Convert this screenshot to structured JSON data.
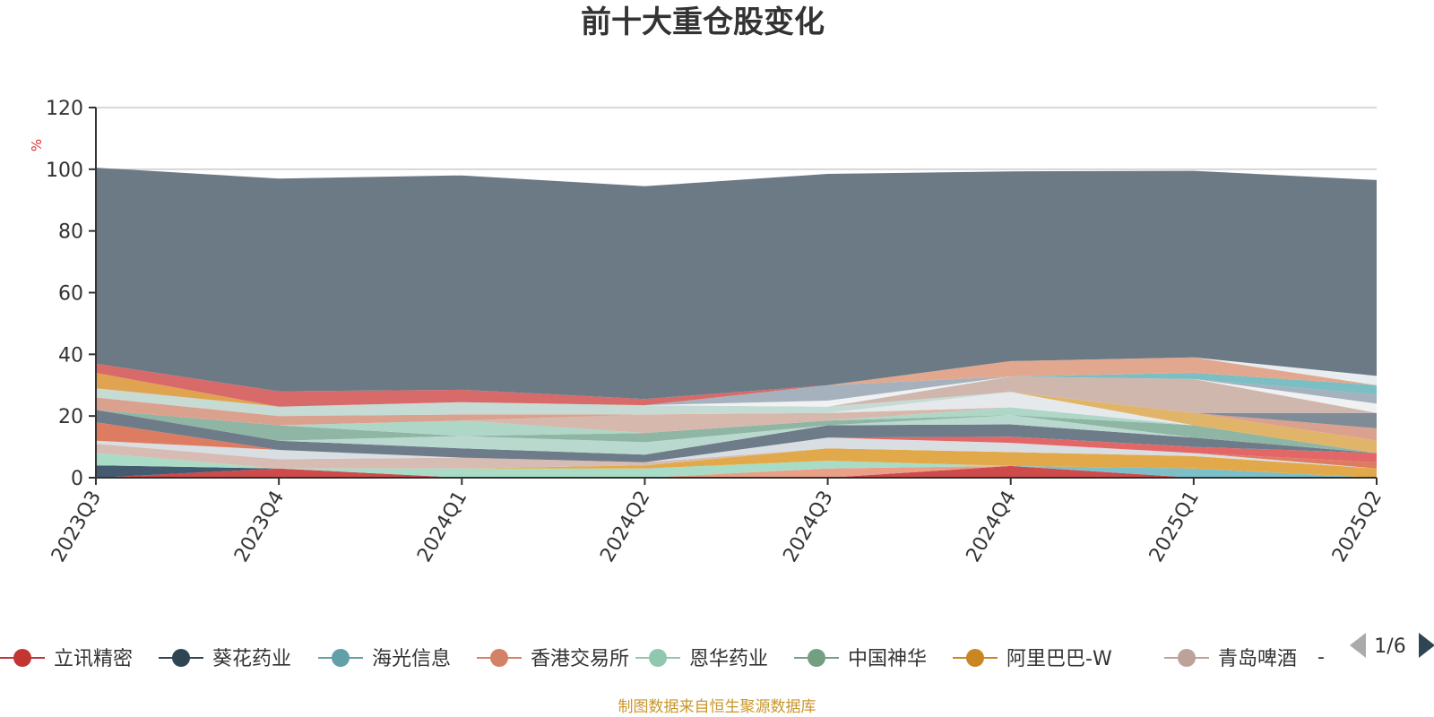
{
  "chart_data": {
    "type": "area",
    "stacked": true,
    "title": "前十大重仓股变化",
    "ylabel": "%",
    "ylim": [
      0,
      120
    ],
    "yticks": [
      0,
      20,
      40,
      60,
      80,
      100,
      120
    ],
    "grid": true,
    "categories": [
      "2023Q3",
      "2023Q4",
      "2024Q1",
      "2024Q2",
      "2024Q3",
      "2024Q4",
      "2025Q1",
      "2025Q2"
    ],
    "series": [
      {
        "name": "立讯精密",
        "color": "#cf4a4a",
        "values": [
          0.0,
          3.0,
          0.0,
          0.0,
          0.0,
          3.8,
          0.0,
          0.0
        ]
      },
      {
        "name": "",
        "color": "#445a6e",
        "values": [
          4.0,
          0.0,
          0.0,
          0.0,
          0.0,
          0.0,
          0.0,
          0.0
        ]
      },
      {
        "name": "",
        "color": "#ea9f86",
        "values": [
          0.0,
          0.0,
          0.0,
          0.0,
          3.0,
          0.0,
          0.0,
          0.0
        ]
      },
      {
        "name": "",
        "color": "#7dbfc8",
        "values": [
          0.0,
          0.0,
          0.0,
          0.0,
          0.0,
          0.0,
          3.0,
          0.0
        ]
      },
      {
        "name": "恩华药业",
        "color": "#a9dcc7",
        "values": [
          4.0,
          0.0,
          3.0,
          3.0,
          2.5,
          0.0,
          0.0,
          0.0
        ]
      },
      {
        "name": "",
        "color": "#9ec7b8",
        "values": [
          0.0,
          0.0,
          0.0,
          0.0,
          0.0,
          0.0,
          0.0,
          0.0
        ]
      },
      {
        "name": "阿里巴巴-W",
        "color": "#e2a94b",
        "values": [
          0.0,
          0.0,
          0.0,
          1.0,
          4.0,
          4.5,
          4.0,
          3.0
        ]
      },
      {
        "name": "青岛啤酒",
        "color": "#d7bcb3",
        "values": [
          3.0,
          3.0,
          3.5,
          1.0,
          0.0,
          0.0,
          0.0,
          0.0
        ]
      },
      {
        "name": "",
        "color": "#d9dee3",
        "values": [
          1.0,
          3.0,
          0.0,
          0.0,
          3.5,
          3.0,
          1.0,
          0.0
        ]
      },
      {
        "name": "香港交易所",
        "color": "#de7c62",
        "values": [
          6.0,
          0.0,
          0.0,
          0.0,
          0.0,
          0.0,
          0.0,
          2.0
        ]
      },
      {
        "name": "",
        "color": "#e46767",
        "values": [
          0.0,
          0.0,
          0.0,
          0.0,
          0.0,
          2.0,
          2.0,
          3.0
        ]
      },
      {
        "name": "",
        "color": "#6e7c8a",
        "values": [
          4.0,
          3.0,
          3.0,
          2.5,
          4.0,
          4.0,
          3.0,
          0.0
        ]
      },
      {
        "name": "",
        "color": "#b9d8ce",
        "values": [
          0.0,
          0.0,
          4.0,
          4.0,
          0.0,
          3.0,
          0.0,
          0.0
        ]
      },
      {
        "name": "",
        "color": "#8fb5a5",
        "values": [
          0.0,
          5.0,
          0.0,
          3.0,
          1.5,
          0.0,
          4.0,
          0.0
        ]
      },
      {
        "name": "",
        "color": "#9aa7b3",
        "values": [
          0.0,
          0.0,
          0.0,
          0.0,
          0.0,
          0.0,
          0.0,
          0.0
        ]
      },
      {
        "name": "",
        "color": "#aed7c8",
        "values": [
          0.0,
          0.0,
          5.0,
          0.0,
          0.0,
          2.5,
          0.0,
          0.0
        ]
      },
      {
        "name": "",
        "color": "#d7b8ad",
        "values": [
          0.0,
          0.0,
          0.0,
          6.0,
          2.5,
          0.0,
          0.0,
          0.0
        ]
      },
      {
        "name": "",
        "color": "#e6e9ec",
        "values": [
          0.0,
          0.0,
          0.0,
          0.0,
          0.0,
          5.0,
          0.0,
          0.0
        ]
      },
      {
        "name": "",
        "color": "#e0b56a",
        "values": [
          0.0,
          0.0,
          0.0,
          0.0,
          0.0,
          0.0,
          4.0,
          4.0
        ]
      },
      {
        "name": "",
        "color": "#dba18f",
        "values": [
          4.0,
          3.0,
          2.0,
          0.0,
          0.0,
          0.0,
          0.0,
          4.0
        ]
      },
      {
        "name": "",
        "color": "#7f8c98",
        "values": [
          0.0,
          0.0,
          0.0,
          0.0,
          0.0,
          0.0,
          0.0,
          5.0
        ]
      },
      {
        "name": "",
        "color": "#c5dbd4",
        "values": [
          3.0,
          3.0,
          4.0,
          3.0,
          2.0,
          0.0,
          0.0,
          0.0
        ]
      },
      {
        "name": "",
        "color": "#cfb7ae",
        "values": [
          0.0,
          0.0,
          0.0,
          0.0,
          0.0,
          5.0,
          11.0,
          0.0
        ]
      },
      {
        "name": "",
        "color": "#f0f1f3",
        "values": [
          0.0,
          0.0,
          0.0,
          0.0,
          2.0,
          0.0,
          0.0,
          3.0
        ]
      },
      {
        "name": "",
        "color": "#a5b2bd",
        "values": [
          0.0,
          0.0,
          0.0,
          0.0,
          5.0,
          0.0,
          0.0,
          3.0
        ]
      },
      {
        "name": "",
        "color": "#7bbec3",
        "values": [
          0.0,
          0.0,
          0.0,
          0.0,
          0.0,
          0.0,
          2.0,
          3.0
        ]
      },
      {
        "name": "",
        "color": "#e2a88f",
        "values": [
          0.0,
          0.0,
          0.0,
          0.0,
          0.0,
          5.0,
          5.0,
          0.0
        ]
      },
      {
        "name": "",
        "color": "#e8edf0",
        "values": [
          0.0,
          0.0,
          0.0,
          0.0,
          0.0,
          0.0,
          0.0,
          3.0
        ]
      },
      {
        "name": "",
        "color": "#e0a451",
        "values": [
          5.0,
          0.0,
          0.0,
          0.0,
          0.0,
          0.0,
          0.0,
          0.0
        ]
      },
      {
        "name": "",
        "color": "#d86a6a",
        "values": [
          3.0,
          5.0,
          4.0,
          2.0,
          0.0,
          0.0,
          0.0,
          0.0
        ]
      },
      {
        "name": "",
        "color": "#6c7a86",
        "values": [
          63.5,
          69.0,
          69.5,
          69.0,
          68.5,
          61.5,
          60.5,
          63.5
        ]
      }
    ]
  },
  "legend": {
    "items": [
      {
        "label": "立讯精密",
        "color": "#c23531"
      },
      {
        "label": "葵花药业",
        "color": "#2f4554"
      },
      {
        "label": "海光信息",
        "color": "#61a0a8"
      },
      {
        "label": "香港交易所",
        "color": "#d48265"
      },
      {
        "label": "恩华药业",
        "color": "#91c7ae"
      },
      {
        "label": "中国神华",
        "color": "#749f83"
      },
      {
        "label": "阿里巴巴-W",
        "color": "#ca8622"
      },
      {
        "label": "青岛啤酒",
        "color": "#bda29a"
      }
    ],
    "truncated_marker": "-",
    "page_text": "1/6"
  },
  "source_note": "制图数据来自恒生聚源数据库"
}
